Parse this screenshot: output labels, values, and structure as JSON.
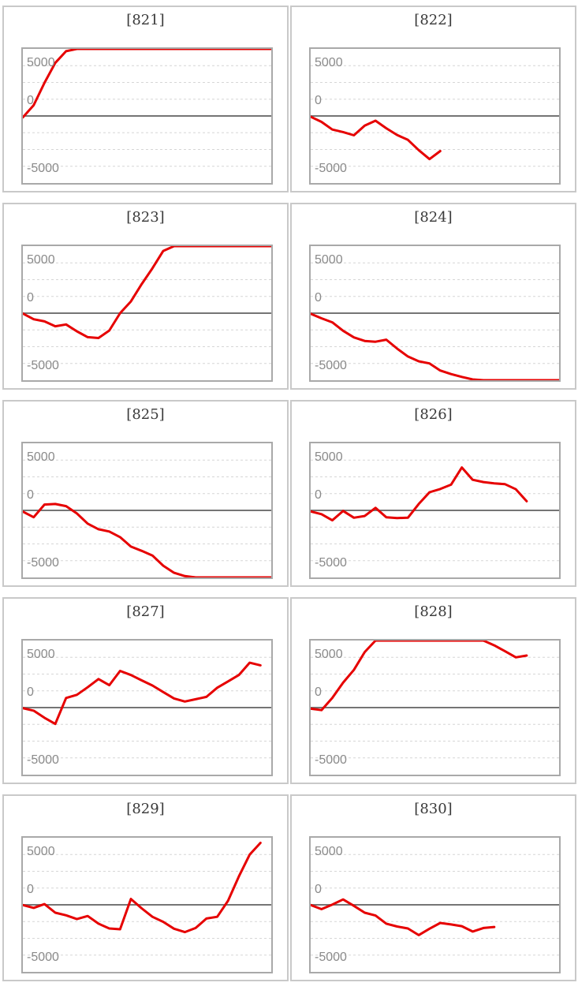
{
  "page": {
    "background": "#ffffff"
  },
  "style": {
    "series_red": "#e60000",
    "zero_line_color": "#757575",
    "minor_grid_color": "#d6d6d6",
    "plot_border_color": "#a9a9a9",
    "cell_border_color": "#c9c9c9",
    "title_color": "#3a3a3a",
    "tick_color": "#8a8a8a"
  },
  "axis": {
    "ymin": -5000,
    "ymax": 5000,
    "tick_labels": [
      "5000",
      "0",
      "-5000"
    ],
    "minor_gridline_step": 1250,
    "zero_line": 0,
    "x_slots": 24,
    "grid": "dotted-minor-solid-zero",
    "legend": "none"
  },
  "chart_data": [
    {
      "type": "line",
      "title": "[821]",
      "ylabel": "",
      "xlabel": "",
      "ylim": [
        -5000,
        5000
      ],
      "yticks": [
        5000,
        0,
        -5000
      ],
      "values": [
        -100,
        800,
        2470,
        3960,
        4830,
        5000,
        5000,
        5000,
        5000,
        5000,
        5000,
        5000,
        5000,
        5000,
        5000,
        5000,
        5000,
        5000,
        5000,
        5000,
        5000,
        5000,
        5000,
        5000
      ]
    },
    {
      "type": "line",
      "title": "[822]",
      "ylabel": "",
      "xlabel": "",
      "ylim": [
        -5000,
        5000
      ],
      "yticks": [
        5000,
        0,
        -5000
      ],
      "values": [
        -60,
        -440,
        -1010,
        -1200,
        -1440,
        -725,
        -350,
        -920,
        -1420,
        -1780,
        -2550,
        -3220,
        -2620
      ]
    },
    {
      "type": "line",
      "title": "[823]",
      "ylabel": "",
      "xlabel": "",
      "ylim": [
        -5000,
        5000
      ],
      "yticks": [
        5000,
        0,
        -5000
      ],
      "values": [
        -25,
        -455,
        -610,
        -975,
        -840,
        -1350,
        -1790,
        -1850,
        -1295,
        0,
        875,
        2170,
        3345,
        4640,
        5000,
        5000,
        5000,
        5000,
        5000,
        5000,
        5000,
        5000,
        5000,
        5000
      ]
    },
    {
      "type": "line",
      "title": "[824]",
      "ylabel": "",
      "xlabel": "",
      "ylim": [
        -5000,
        5000
      ],
      "yticks": [
        5000,
        0,
        -5000
      ],
      "values": [
        -40,
        -380,
        -685,
        -1310,
        -1805,
        -2070,
        -2130,
        -1975,
        -2640,
        -3230,
        -3590,
        -3745,
        -4275,
        -4540,
        -4750,
        -4940,
        -5000,
        -5000,
        -5000,
        -5000,
        -5000,
        -5000,
        -5000,
        -5000
      ]
    },
    {
      "type": "line",
      "title": "[825]",
      "ylabel": "",
      "xlabel": "",
      "ylim": [
        -5000,
        5000
      ],
      "yticks": [
        5000,
        0,
        -5000
      ],
      "values": [
        -95,
        -510,
        435,
        475,
        320,
        -230,
        -990,
        -1405,
        -1575,
        -1995,
        -2700,
        -3020,
        -3365,
        -4125,
        -4655,
        -4900,
        -5000,
        -5000,
        -5000,
        -5000,
        -5000,
        -5000,
        -5000,
        -5000
      ]
    },
    {
      "type": "line",
      "title": "[826]",
      "ylabel": "",
      "xlabel": "",
      "ylim": [
        -5000,
        5000
      ],
      "yticks": [
        5000,
        0,
        -5000
      ],
      "values": [
        -75,
        -285,
        -740,
        -40,
        -550,
        -420,
        190,
        -515,
        -570,
        -550,
        475,
        1350,
        1595,
        1920,
        3200,
        2280,
        2110,
        2015,
        1955,
        1575,
        685
      ]
    },
    {
      "type": "line",
      "title": "[827]",
      "ylabel": "",
      "xlabel": "",
      "ylim": [
        -5000,
        5000
      ],
      "yticks": [
        5000,
        0,
        -5000
      ],
      "values": [
        -40,
        -230,
        -760,
        -1215,
        720,
        950,
        1520,
        2130,
        1670,
        2735,
        2430,
        2030,
        1650,
        1160,
        685,
        455,
        625,
        800,
        1480,
        1955,
        2430,
        3345,
        3155
      ]
    },
    {
      "type": "line",
      "title": "[828]",
      "ylabel": "",
      "xlabel": "",
      "ylim": [
        -5000,
        5000
      ],
      "yticks": [
        5000,
        0,
        -5000
      ],
      "values": [
        -75,
        -190,
        720,
        1860,
        2810,
        4140,
        5000,
        5000,
        5000,
        5000,
        5000,
        5000,
        5000,
        5000,
        5000,
        5000,
        5000,
        4640,
        4200,
        3745,
        3880
      ]
    },
    {
      "type": "line",
      "title": "[829]",
      "ylabel": "",
      "xlabel": "",
      "ylim": [
        -5000,
        5000
      ],
      "yticks": [
        5000,
        0,
        -5000
      ],
      "values": [
        -20,
        -230,
        55,
        -590,
        -780,
        -1065,
        -835,
        -1405,
        -1765,
        -1825,
        435,
        -265,
        -895,
        -1270,
        -1785,
        -2035,
        -1730,
        -1025,
        -895,
        300,
        2110,
        3740,
        4615
      ]
    },
    {
      "type": "line",
      "title": "[830]",
      "ylabel": "",
      "xlabel": "",
      "ylim": [
        -5000,
        5000
      ],
      "yticks": [
        5000,
        0,
        -5000
      ],
      "values": [
        -20,
        -325,
        20,
        400,
        -75,
        -590,
        -800,
        -1405,
        -1615,
        -1765,
        -2260,
        -1785,
        -1350,
        -1465,
        -1595,
        -1995,
        -1730,
        -1655
      ]
    }
  ]
}
